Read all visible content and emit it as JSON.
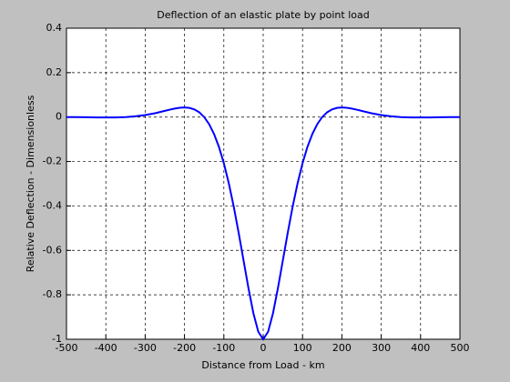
{
  "chart_data": {
    "type": "line",
    "title": "Deflection of an elastic plate by point load",
    "x_label": "Distance from Load - km",
    "y_label": "Relative Deflection - Dimensionless",
    "x": [
      -500,
      -475,
      -450,
      -425,
      -400,
      -375,
      -350,
      -325,
      -300,
      -275,
      -250,
      -237.5,
      -225,
      -212.5,
      -200,
      -187.5,
      -175,
      -162.5,
      -150,
      -137.5,
      -125,
      -112.5,
      -100,
      -87.5,
      -75,
      -62.5,
      -50,
      -37.5,
      -25,
      -12.5,
      0,
      12.5,
      25,
      37.5,
      50,
      62.5,
      75,
      87.5,
      100,
      112.5,
      125,
      137.5,
      150,
      162.5,
      175,
      187.5,
      200,
      212.5,
      225,
      237.5,
      250,
      275,
      300,
      325,
      350,
      375,
      400,
      425,
      450,
      475,
      500
    ],
    "series": [
      {
        "color": "#0000ff",
        "values": [
          0,
          -0.0003,
          -0.0009,
          -0.0016,
          -0.0019,
          -0.0015,
          0,
          0.0033,
          0.009,
          0.0174,
          0.0279,
          0.0333,
          0.0381,
          0.0418,
          0.0432,
          0.0413,
          0.0346,
          0.0215,
          0,
          -0.0318,
          -0.076,
          -0.1342,
          -0.2079,
          -0.2975,
          -0.4022,
          -0.5197,
          -0.6448,
          -0.7696,
          -0.8822,
          -0.9662,
          -1,
          -0.9662,
          -0.8822,
          -0.7696,
          -0.6448,
          -0.5197,
          -0.4022,
          -0.2975,
          -0.2079,
          -0.1342,
          -0.076,
          -0.0318,
          0,
          0.0215,
          0.0346,
          0.0413,
          0.0432,
          0.0418,
          0.0381,
          0.0333,
          0.0279,
          0.0174,
          0.009,
          0.0033,
          0,
          -0.0015,
          -0.0019,
          -0.0016,
          -0.0009,
          -0.0003,
          0
        ]
      }
    ],
    "xlim": [
      -500,
      500
    ],
    "xticks": [
      -500,
      -400,
      -300,
      -200,
      -100,
      0,
      100,
      200,
      300,
      400,
      500
    ],
    "ylim": [
      -1,
      0.4
    ],
    "yticks": [
      -1,
      -0.8,
      -0.6,
      -0.4,
      -0.2,
      0,
      0.2,
      0.4
    ],
    "grid": true
  }
}
